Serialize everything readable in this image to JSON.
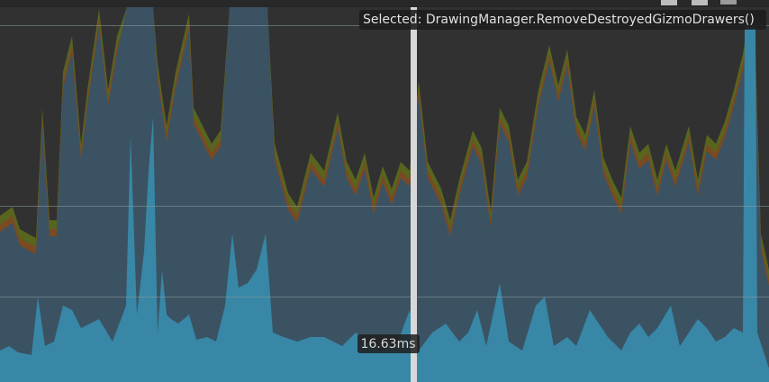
{
  "tooltip": {
    "selected": "Selected: DrawingManager.RemoveDestroyedGizmoDrawers()"
  },
  "cursor": {
    "time_label": "16.63ms"
  }
}
